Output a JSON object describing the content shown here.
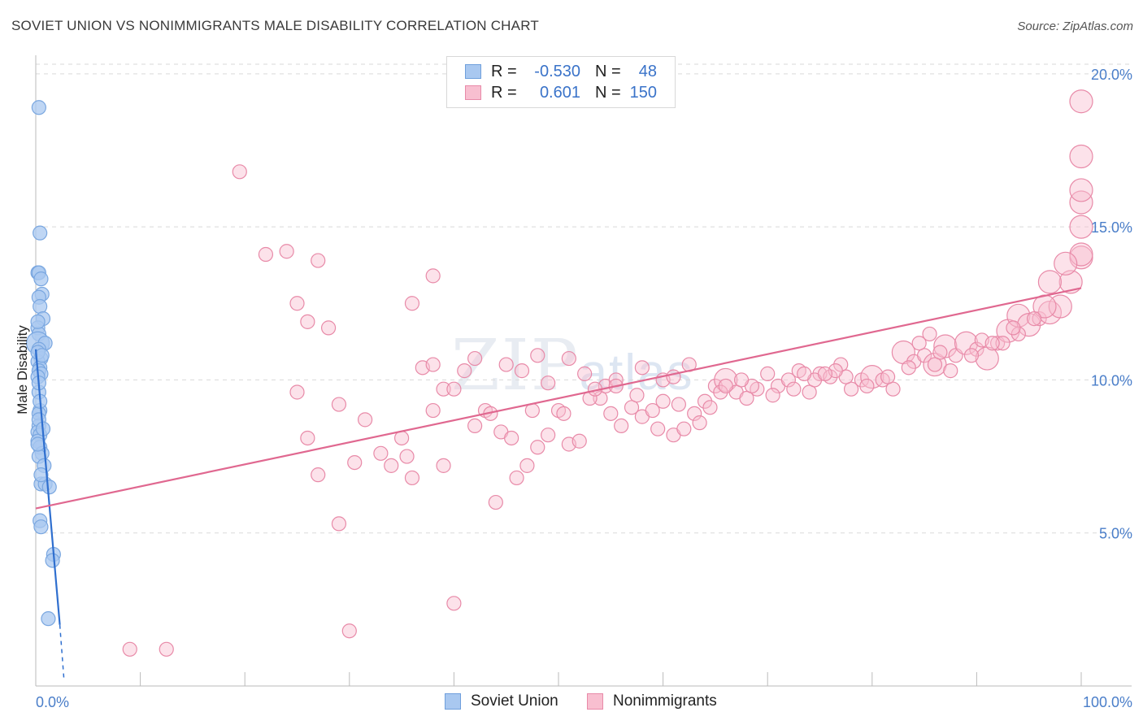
{
  "title": "SOVIET UNION VS NONIMMIGRANTS MALE DISABILITY CORRELATION CHART",
  "source_prefix": "Source: ",
  "source_name": "ZipAtlas.com",
  "watermark": {
    "zip": "ZIP",
    "atlas": "atlas"
  },
  "legend": {
    "rows": [
      {
        "r_label": "R =",
        "r_value": "-0.530",
        "n_label": "N =",
        "n_value": "48",
        "color": "#a9c8f0",
        "border": "#6f9fdc"
      },
      {
        "r_label": "R =",
        "r_value": "0.601",
        "n_label": "N =",
        "n_value": "150",
        "color": "#f8bfd0",
        "border": "#e88aa8"
      }
    ]
  },
  "bottom_legend": [
    {
      "label": "Soviet Union",
      "color": "#a9c8f0",
      "border": "#6f9fdc"
    },
    {
      "label": "Nonimmigrants",
      "color": "#f8bfd0",
      "border": "#e88aa8"
    }
  ],
  "chart_data": {
    "type": "scatter",
    "title": "SOVIET UNION VS NONIMMIGRANTS MALE DISABILITY CORRELATION CHART",
    "xlabel": "",
    "ylabel": "Male Disability",
    "xlim": [
      0,
      100
    ],
    "ylim": [
      0,
      20.5
    ],
    "x_tick_labels": [
      "0.0%",
      "100.0%"
    ],
    "y_ticks": [
      5,
      10,
      15,
      20
    ],
    "y_tick_labels": [
      "5.0%",
      "10.0%",
      "15.0%",
      "20.0%"
    ],
    "grid": true,
    "series": [
      {
        "name": "Soviet Union",
        "color": "#7aa7e0",
        "fill": "#a9c8f0",
        "trend": {
          "x0": 0,
          "y0": 11.0,
          "x1": 2.3,
          "y1": 2.0,
          "dash_to_x": 2.7,
          "dash_to_y": 0.2,
          "color": "#2f6fcf"
        },
        "points": [
          [
            0.3,
            18.9,
            1
          ],
          [
            0.4,
            14.8,
            1
          ],
          [
            0.2,
            13.5,
            1
          ],
          [
            0.3,
            13.5,
            1
          ],
          [
            0.5,
            13.3,
            1
          ],
          [
            0.6,
            12.8,
            1
          ],
          [
            0.3,
            12.7,
            1
          ],
          [
            0.4,
            12.4,
            1
          ],
          [
            0.7,
            12.0,
            1
          ],
          [
            0.2,
            11.7,
            1
          ],
          [
            0.3,
            11.5,
            1
          ],
          [
            0.2,
            11.2,
            2
          ],
          [
            0.9,
            11.2,
            1
          ],
          [
            0.3,
            11.0,
            1
          ],
          [
            0.5,
            10.7,
            1
          ],
          [
            0.2,
            10.6,
            1
          ],
          [
            0.4,
            10.4,
            1
          ],
          [
            0.3,
            10.3,
            1
          ],
          [
            0.5,
            10.2,
            1
          ],
          [
            0.2,
            10.1,
            1
          ],
          [
            0.3,
            9.6,
            1
          ],
          [
            0.4,
            9.0,
            1
          ],
          [
            0.3,
            8.9,
            1
          ],
          [
            0.3,
            8.5,
            1
          ],
          [
            0.2,
            8.3,
            1
          ],
          [
            0.4,
            8.2,
            1
          ],
          [
            0.2,
            8.0,
            1
          ],
          [
            0.4,
            7.8,
            1
          ],
          [
            0.6,
            7.6,
            1
          ],
          [
            0.3,
            7.5,
            1
          ],
          [
            0.8,
            7.2,
            1
          ],
          [
            0.5,
            6.6,
            1
          ],
          [
            0.9,
            6.6,
            1
          ],
          [
            1.3,
            6.5,
            1
          ],
          [
            0.4,
            5.4,
            1
          ],
          [
            0.5,
            5.2,
            1
          ],
          [
            1.7,
            4.3,
            1
          ],
          [
            1.6,
            4.1,
            1
          ],
          [
            1.2,
            2.2,
            1
          ],
          [
            0.3,
            9.9,
            1
          ],
          [
            0.2,
            10.9,
            1
          ],
          [
            0.6,
            10.8,
            1
          ],
          [
            0.4,
            9.3,
            1
          ],
          [
            0.3,
            8.7,
            1
          ],
          [
            0.2,
            7.9,
            1
          ],
          [
            0.7,
            8.4,
            1
          ],
          [
            0.5,
            6.9,
            1
          ],
          [
            0.2,
            11.9,
            1
          ]
        ]
      },
      {
        "name": "Nonimmigrants",
        "color": "#e88aa8",
        "fill": "#f8bfd0",
        "trend": {
          "x0": 0,
          "y0": 5.8,
          "x1": 100,
          "y1": 13.0,
          "color": "#e06890"
        },
        "points": [
          [
            9.0,
            1.2,
            1
          ],
          [
            12.5,
            1.2,
            1
          ],
          [
            30.0,
            1.8,
            1
          ],
          [
            40.0,
            2.7,
            1
          ],
          [
            29.0,
            5.3,
            1
          ],
          [
            44.0,
            6.0,
            1
          ],
          [
            27.0,
            6.9,
            1
          ],
          [
            36.0,
            6.8,
            1
          ],
          [
            46.0,
            6.8,
            1
          ],
          [
            47.0,
            7.2,
            1
          ],
          [
            39.0,
            7.2,
            1
          ],
          [
            34.0,
            7.2,
            1
          ],
          [
            30.5,
            7.3,
            1
          ],
          [
            33.0,
            7.6,
            1
          ],
          [
            35.5,
            7.5,
            1
          ],
          [
            26.0,
            8.1,
            1
          ],
          [
            35.0,
            8.1,
            1
          ],
          [
            42.0,
            8.5,
            1
          ],
          [
            44.5,
            8.3,
            1
          ],
          [
            45.5,
            8.1,
            1
          ],
          [
            48.0,
            7.8,
            1
          ],
          [
            51.0,
            7.9,
            1
          ],
          [
            52.0,
            8.0,
            1
          ],
          [
            49.0,
            8.2,
            1
          ],
          [
            56.0,
            8.5,
            1
          ],
          [
            59.5,
            8.4,
            1
          ],
          [
            61.0,
            8.2,
            1
          ],
          [
            62.0,
            8.4,
            1
          ],
          [
            58.0,
            8.8,
            1
          ],
          [
            55.0,
            8.9,
            1
          ],
          [
            54.0,
            9.4,
            1
          ],
          [
            57.0,
            9.1,
            1
          ],
          [
            60.0,
            9.3,
            1
          ],
          [
            63.0,
            8.9,
            1
          ],
          [
            64.0,
            9.3,
            1
          ],
          [
            43.0,
            9.0,
            1
          ],
          [
            43.5,
            8.9,
            1
          ],
          [
            47.5,
            9.0,
            1
          ],
          [
            50.0,
            9.0,
            1
          ],
          [
            50.5,
            8.9,
            1
          ],
          [
            38.0,
            9.0,
            1
          ],
          [
            31.5,
            8.7,
            1
          ],
          [
            29.0,
            9.2,
            1
          ],
          [
            25.0,
            9.6,
            1
          ],
          [
            39.0,
            9.7,
            1
          ],
          [
            40.0,
            9.7,
            1
          ],
          [
            41.0,
            10.3,
            1
          ],
          [
            37.0,
            10.4,
            1
          ],
          [
            38.0,
            10.5,
            1
          ],
          [
            42.0,
            10.7,
            1
          ],
          [
            49.0,
            9.9,
            1
          ],
          [
            53.0,
            9.4,
            1
          ],
          [
            54.5,
            9.8,
            1
          ],
          [
            55.5,
            10.0,
            1
          ],
          [
            58.0,
            10.4,
            1
          ],
          [
            60.0,
            10.0,
            1
          ],
          [
            62.5,
            10.5,
            1
          ],
          [
            65.0,
            9.8,
            1
          ],
          [
            66.0,
            10.0,
            2
          ],
          [
            67.0,
            9.6,
            1
          ],
          [
            68.0,
            9.4,
            1
          ],
          [
            69.0,
            9.7,
            1
          ],
          [
            70.0,
            10.2,
            1
          ],
          [
            71.0,
            9.8,
            1
          ],
          [
            72.0,
            10.0,
            1
          ],
          [
            73.0,
            10.3,
            1
          ],
          [
            74.0,
            9.6,
            1
          ],
          [
            75.0,
            10.2,
            1
          ],
          [
            76.0,
            10.1,
            1
          ],
          [
            77.0,
            10.5,
            1
          ],
          [
            78.0,
            9.7,
            1
          ],
          [
            79.0,
            10.0,
            1
          ],
          [
            80.0,
            10.1,
            2
          ],
          [
            81.0,
            10.0,
            1
          ],
          [
            82.0,
            9.7,
            1
          ],
          [
            83.0,
            10.9,
            2
          ],
          [
            84.0,
            10.6,
            1
          ],
          [
            85.0,
            10.8,
            1
          ],
          [
            86.0,
            10.5,
            2
          ],
          [
            87.0,
            11.1,
            2
          ],
          [
            88.0,
            10.8,
            1
          ],
          [
            89.0,
            11.2,
            2
          ],
          [
            90.0,
            11.0,
            1
          ],
          [
            91.0,
            10.7,
            2
          ],
          [
            92.0,
            11.2,
            1
          ],
          [
            93.0,
            11.6,
            2
          ],
          [
            94.0,
            12.1,
            2
          ],
          [
            95.0,
            11.8,
            2
          ],
          [
            96.0,
            12.0,
            1
          ],
          [
            97.0,
            12.2,
            2
          ],
          [
            98.0,
            12.4,
            2
          ],
          [
            99.0,
            13.2,
            2
          ],
          [
            100.0,
            14.0,
            2
          ],
          [
            101.0,
            14.1,
            2
          ],
          [
            102.0,
            15.0,
            2
          ],
          [
            103.0,
            15.8,
            2
          ],
          [
            104.0,
            16.2,
            2
          ],
          [
            102.5,
            17.3,
            2
          ],
          [
            100.3,
            19.1,
            2
          ],
          [
            98.5,
            13.8,
            2
          ],
          [
            97.0,
            13.2,
            2
          ],
          [
            96.5,
            12.4,
            2
          ],
          [
            95.5,
            12.0,
            1
          ],
          [
            94.0,
            11.5,
            1
          ],
          [
            92.5,
            11.2,
            1
          ],
          [
            90.5,
            11.3,
            1
          ],
          [
            89.5,
            10.8,
            1
          ],
          [
            87.5,
            10.3,
            1
          ],
          [
            86.5,
            10.9,
            1
          ],
          [
            85.5,
            11.5,
            1
          ],
          [
            84.5,
            11.2,
            1
          ],
          [
            83.5,
            10.4,
            1
          ],
          [
            81.5,
            10.1,
            1
          ],
          [
            79.5,
            9.8,
            1
          ],
          [
            77.5,
            10.1,
            1
          ],
          [
            76.5,
            10.3,
            1
          ],
          [
            74.5,
            10.0,
            1
          ],
          [
            73.5,
            10.2,
            1
          ],
          [
            72.5,
            9.7,
            1
          ],
          [
            70.5,
            9.5,
            1
          ],
          [
            68.5,
            9.8,
            1
          ],
          [
            67.5,
            10.0,
            1
          ],
          [
            65.5,
            9.6,
            1
          ],
          [
            64.5,
            9.1,
            1
          ],
          [
            63.5,
            8.6,
            1
          ],
          [
            61.5,
            9.2,
            1
          ],
          [
            59.0,
            9.0,
            1
          ],
          [
            57.5,
            9.5,
            1
          ],
          [
            55.5,
            9.8,
            1
          ],
          [
            53.5,
            9.7,
            1
          ],
          [
            52.5,
            10.2,
            1
          ],
          [
            51.0,
            10.7,
            1
          ],
          [
            48.0,
            10.8,
            1
          ],
          [
            46.5,
            10.3,
            1
          ],
          [
            45.0,
            10.5,
            1
          ],
          [
            19.5,
            16.8,
            1
          ],
          [
            22.0,
            14.1,
            1
          ],
          [
            24.0,
            14.2,
            1
          ],
          [
            27.0,
            13.9,
            1
          ],
          [
            38.0,
            13.4,
            1
          ],
          [
            25.0,
            12.5,
            1
          ],
          [
            36.0,
            12.5,
            1
          ],
          [
            26.0,
            11.9,
            1
          ],
          [
            28.0,
            11.7,
            1
          ],
          [
            61.0,
            10.1,
            1
          ],
          [
            66.0,
            9.8,
            1
          ],
          [
            75.5,
            10.2,
            1
          ],
          [
            86.0,
            10.5,
            1
          ],
          [
            91.5,
            11.2,
            1
          ],
          [
            93.5,
            11.7,
            1
          ]
        ]
      }
    ]
  }
}
